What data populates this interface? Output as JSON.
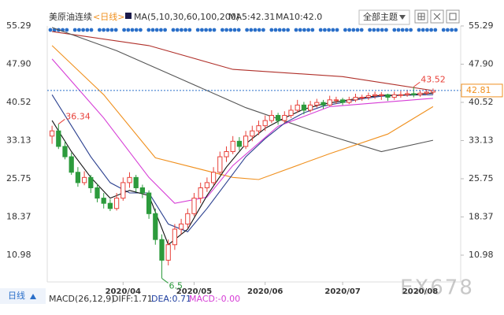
{
  "header": {
    "symbol": "美原油连续",
    "period": "<日线>",
    "ma_label": "MA(5,10,30,60,100,200)",
    "ma5": "MA5:42.31",
    "ma10": "MA10:42.0",
    "theme": "全部主题"
  },
  "footer": {
    "period": "日线",
    "macd": "MACD(26,12,9)",
    "diff": "DIFF:1.71",
    "dea": "DEA:0.71",
    "macd_value": "MACD:-0.00",
    "watermark": "EX678"
  },
  "chart_data": {
    "type": "candlestick",
    "categories": [
      null,
      null,
      null,
      null,
      null,
      null,
      null,
      null,
      null,
      null,
      null,
      "2020/04",
      null,
      null,
      null,
      null,
      null,
      null,
      null,
      null,
      null,
      null,
      "2020/05",
      null,
      null,
      null,
      null,
      null,
      null,
      null,
      null,
      null,
      null,
      "2020/06",
      null,
      null,
      null,
      null,
      null,
      null,
      null,
      null,
      null,
      null,
      null,
      "2020/07",
      null,
      null,
      null,
      null,
      null,
      null,
      null,
      null,
      null,
      null,
      null,
      "2020/08",
      null,
      null
    ],
    "open": [
      34.0,
      35.0,
      32.0,
      30.0,
      27.0,
      25.0,
      26.0,
      24.0,
      22.0,
      21.0,
      20.0,
      22.0,
      25.0,
      26.0,
      24.0,
      23.0,
      19.0,
      14.0,
      10.0,
      13.0,
      16.0,
      17.0,
      19.0,
      22.0,
      24.0,
      25.0,
      27.0,
      30.0,
      31.0,
      33.0,
      32.0,
      34.0,
      35.0,
      36.0,
      37.0,
      38.0,
      37.0,
      38.0,
      39.0,
      40.0,
      39.0,
      40.0,
      40.5,
      40.0,
      41.0,
      41.0,
      40.5,
      41.0,
      41.5,
      41.5,
      41.8,
      42.0,
      42.0,
      41.5,
      42.0,
      42.0,
      42.2,
      42.0,
      42.3,
      42.5
    ],
    "high": [
      36.0,
      36.34,
      33.0,
      30.8,
      28.0,
      27.2,
      26.5,
      24.8,
      23.0,
      21.8,
      23.0,
      26.0,
      27.0,
      26.5,
      24.6,
      23.5,
      20.0,
      15.0,
      14.0,
      17.0,
      18.0,
      20.0,
      23.0,
      25.0,
      26.0,
      28.0,
      31.0,
      32.0,
      34.0,
      33.8,
      35.0,
      36.0,
      37.0,
      38.0,
      39.0,
      38.5,
      38.8,
      40.0,
      41.0,
      40.6,
      40.8,
      41.2,
      41.0,
      41.8,
      41.6,
      41.4,
      41.6,
      42.2,
      42.0,
      42.4,
      42.6,
      42.5,
      42.2,
      42.6,
      42.7,
      42.9,
      43.52,
      42.8,
      43.0,
      43.2
    ],
    "low": [
      32.5,
      31.5,
      29.5,
      26.5,
      24.2,
      24.5,
      23.0,
      21.2,
      20.0,
      19.5,
      19.6,
      21.5,
      24.0,
      23.2,
      22.0,
      18.0,
      13.0,
      6.5,
      9.0,
      12.0,
      15.0,
      16.2,
      18.5,
      21.0,
      23.2,
      24.5,
      26.5,
      29.0,
      30.5,
      31.2,
      31.5,
      33.0,
      34.2,
      35.0,
      36.5,
      36.2,
      36.5,
      37.5,
      38.5,
      38.2,
      38.6,
      39.5,
      39.3,
      39.8,
      40.2,
      40.0,
      40.2,
      40.6,
      40.8,
      41.0,
      41.2,
      41.0,
      40.8,
      41.0,
      41.4,
      41.6,
      41.5,
      41.6,
      41.9,
      42.1
    ],
    "close": [
      35.0,
      32.0,
      30.0,
      27.0,
      25.0,
      26.0,
      24.0,
      22.0,
      21.0,
      20.0,
      22.0,
      25.0,
      26.0,
      24.0,
      23.0,
      19.0,
      14.0,
      10.0,
      13.0,
      16.0,
      17.0,
      19.0,
      22.0,
      24.0,
      25.0,
      27.0,
      30.0,
      31.0,
      33.0,
      32.0,
      34.0,
      35.0,
      36.0,
      37.0,
      38.0,
      37.0,
      38.0,
      39.0,
      40.0,
      39.0,
      40.0,
      40.5,
      40.0,
      41.0,
      41.0,
      40.5,
      41.0,
      41.5,
      41.5,
      41.8,
      42.0,
      42.0,
      41.5,
      42.0,
      42.0,
      42.2,
      42.0,
      42.3,
      42.5,
      42.8
    ],
    "up_color": "#e8413a",
    "down_color": "#2c9b3c",
    "overlays": [
      {
        "color": "#b0302a",
        "x": [
          0,
          15,
          28,
          45,
          59
        ],
        "values": [
          54.2,
          51.5,
          46.9,
          45.5,
          42.8
        ]
      },
      {
        "color": "#555555",
        "x": [
          0,
          10,
          20,
          30,
          40,
          51,
          59
        ],
        "values": [
          55.0,
          50.5,
          45.0,
          39.5,
          35.2,
          31.0,
          33.2
        ]
      },
      {
        "color": "#f0901e",
        "x": [
          0,
          8,
          16,
          28,
          32,
          43,
          52,
          59
        ],
        "values": [
          51.5,
          42.0,
          29.8,
          26.0,
          25.6,
          30.6,
          34.4,
          39.7
        ]
      },
      {
        "color": "#d63cd6",
        "x": [
          0,
          8,
          15,
          19,
          24,
          28,
          35,
          43,
          59
        ],
        "values": [
          48.9,
          37.5,
          26.0,
          21.0,
          22.2,
          28.3,
          35.9,
          39.7,
          41.3
        ]
      },
      {
        "color": "#2a3f8f",
        "x": [
          0,
          3,
          6,
          9,
          12,
          15,
          18,
          21,
          24,
          27,
          30,
          33,
          36,
          39,
          42,
          45,
          48,
          51,
          54,
          59
        ],
        "values": [
          42,
          36,
          30,
          25,
          23,
          23,
          17,
          15.5,
          20,
          25,
          30,
          33.5,
          36.5,
          38.5,
          39.8,
          40.5,
          41.2,
          41.7,
          41.9,
          42.0
        ]
      },
      {
        "color": "#111111",
        "x": [
          0,
          3,
          6,
          9,
          12,
          15,
          18,
          21,
          24,
          27,
          30,
          33,
          36,
          39,
          42,
          45,
          48,
          51,
          54,
          59
        ],
        "values": [
          37,
          31,
          26,
          22,
          23.5,
          22.5,
          13,
          16,
          22.5,
          28,
          32.5,
          35.5,
          37.5,
          39.2,
          40.2,
          40.8,
          41.4,
          41.9,
          41.9,
          42.31
        ]
      }
    ],
    "annotations": [
      {
        "x": 1,
        "y": 36.34,
        "color": "#e8413a"
      },
      {
        "x": 17,
        "y": 6.5,
        "color": "#2c9b3c"
      },
      {
        "x": 56,
        "y": 43.52,
        "color": "#e8413a"
      }
    ],
    "last_price": 42.81,
    "last_price_color": "#f0901e",
    "ylim": [
      6.0,
      56.0
    ],
    "yticks": [
      {
        "value": 55.29,
        "label": "55.29"
      },
      {
        "value": 47.9,
        "label": "47.90"
      },
      {
        "value": 40.52,
        "label": "40.52"
      },
      {
        "value": 33.13,
        "label": "33.13"
      },
      {
        "value": 25.75,
        "label": "25.75"
      },
      {
        "value": 18.37,
        "label": "18.37"
      },
      {
        "value": 10.98,
        "label": "10.98"
      }
    ]
  }
}
